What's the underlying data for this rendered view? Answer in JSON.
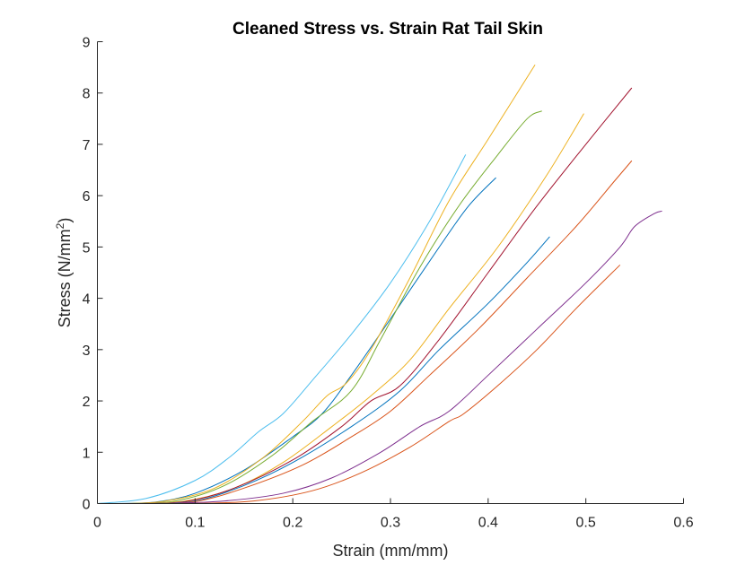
{
  "chart_data": {
    "type": "line",
    "title": "Cleaned Stress vs. Strain Rat Tail Skin",
    "xlabel": "Strain (mm/mm)",
    "ylabel_main": "Stress (N/mm",
    "ylabel_sup": "2",
    "ylabel_end": ")",
    "xlim": [
      0,
      0.6
    ],
    "ylim": [
      0,
      9
    ],
    "xticks": [
      0,
      0.1,
      0.2,
      0.3,
      0.4,
      0.5,
      0.6
    ],
    "xtick_labels": [
      "0",
      "0.1",
      "0.2",
      "0.3",
      "0.4",
      "0.5",
      "0.6"
    ],
    "yticks": [
      0,
      1,
      2,
      3,
      4,
      5,
      6,
      7,
      8,
      9
    ],
    "ytick_labels": [
      "0",
      "1",
      "2",
      "3",
      "4",
      "5",
      "6",
      "7",
      "8",
      "9"
    ],
    "grid": false,
    "legend": "none",
    "series": [
      {
        "color": "#4DBEEE",
        "points": [
          [
            0,
            0
          ],
          [
            0.05,
            0.1
          ],
          [
            0.1,
            0.45
          ],
          [
            0.135,
            0.9
          ],
          [
            0.165,
            1.4
          ],
          [
            0.19,
            1.75
          ],
          [
            0.22,
            2.4
          ],
          [
            0.26,
            3.3
          ],
          [
            0.3,
            4.3
          ],
          [
            0.34,
            5.5
          ],
          [
            0.377,
            6.8
          ]
        ]
      },
      {
        "color": "#0072BD",
        "points": [
          [
            0.02,
            0
          ],
          [
            0.06,
            0.03
          ],
          [
            0.1,
            0.2
          ],
          [
            0.15,
            0.65
          ],
          [
            0.2,
            1.3
          ],
          [
            0.23,
            1.75
          ],
          [
            0.26,
            2.5
          ],
          [
            0.3,
            3.6
          ],
          [
            0.35,
            5.0
          ],
          [
            0.38,
            5.8
          ],
          [
            0.408,
            6.35
          ]
        ]
      },
      {
        "color": "#EDB120",
        "points": [
          [
            0.03,
            0
          ],
          [
            0.07,
            0.05
          ],
          [
            0.12,
            0.3
          ],
          [
            0.17,
            0.9
          ],
          [
            0.21,
            1.6
          ],
          [
            0.235,
            2.1
          ],
          [
            0.255,
            2.35
          ],
          [
            0.28,
            3.0
          ],
          [
            0.32,
            4.4
          ],
          [
            0.36,
            5.9
          ],
          [
            0.4,
            7.1
          ],
          [
            0.448,
            8.55
          ]
        ]
      },
      {
        "color": "#77AC30",
        "points": [
          [
            0.03,
            0
          ],
          [
            0.08,
            0.05
          ],
          [
            0.13,
            0.35
          ],
          [
            0.18,
            0.95
          ],
          [
            0.22,
            1.6
          ],
          [
            0.26,
            2.2
          ],
          [
            0.29,
            3.2
          ],
          [
            0.33,
            4.6
          ],
          [
            0.37,
            5.8
          ],
          [
            0.41,
            6.8
          ],
          [
            0.44,
            7.5
          ],
          [
            0.455,
            7.65
          ]
        ]
      },
      {
        "color": "#EDB120",
        "points": [
          [
            0.04,
            0
          ],
          [
            0.09,
            0.05
          ],
          [
            0.14,
            0.3
          ],
          [
            0.19,
            0.8
          ],
          [
            0.24,
            1.5
          ],
          [
            0.28,
            2.1
          ],
          [
            0.32,
            2.8
          ],
          [
            0.36,
            3.8
          ],
          [
            0.41,
            5.0
          ],
          [
            0.46,
            6.4
          ],
          [
            0.498,
            7.6
          ]
        ]
      },
      {
        "color": "#A2142F",
        "points": [
          [
            0.04,
            0
          ],
          [
            0.09,
            0.04
          ],
          [
            0.14,
            0.3
          ],
          [
            0.2,
            0.85
          ],
          [
            0.25,
            1.5
          ],
          [
            0.28,
            2.0
          ],
          [
            0.31,
            2.3
          ],
          [
            0.35,
            3.2
          ],
          [
            0.4,
            4.5
          ],
          [
            0.45,
            5.8
          ],
          [
            0.5,
            7.0
          ],
          [
            0.547,
            8.1
          ]
        ]
      },
      {
        "color": "#0072BD",
        "points": [
          [
            0.05,
            0
          ],
          [
            0.1,
            0.05
          ],
          [
            0.15,
            0.35
          ],
          [
            0.2,
            0.8
          ],
          [
            0.26,
            1.5
          ],
          [
            0.31,
            2.2
          ],
          [
            0.35,
            3.0
          ],
          [
            0.4,
            3.9
          ],
          [
            0.44,
            4.7
          ],
          [
            0.463,
            5.2
          ]
        ]
      },
      {
        "color": "#D95319",
        "points": [
          [
            0.05,
            0
          ],
          [
            0.1,
            0.04
          ],
          [
            0.15,
            0.3
          ],
          [
            0.21,
            0.75
          ],
          [
            0.26,
            1.3
          ],
          [
            0.3,
            1.8
          ],
          [
            0.34,
            2.5
          ],
          [
            0.39,
            3.4
          ],
          [
            0.44,
            4.4
          ],
          [
            0.49,
            5.4
          ],
          [
            0.53,
            6.3
          ],
          [
            0.547,
            6.68
          ]
        ]
      },
      {
        "color": "#7E2F8E",
        "points": [
          [
            0.07,
            0
          ],
          [
            0.13,
            0.05
          ],
          [
            0.19,
            0.2
          ],
          [
            0.24,
            0.5
          ],
          [
            0.29,
            1.0
          ],
          [
            0.33,
            1.5
          ],
          [
            0.36,
            1.8
          ],
          [
            0.4,
            2.5
          ],
          [
            0.45,
            3.4
          ],
          [
            0.5,
            4.3
          ],
          [
            0.535,
            5.0
          ],
          [
            0.55,
            5.4
          ],
          [
            0.57,
            5.65
          ],
          [
            0.578,
            5.7
          ]
        ]
      },
      {
        "color": "#D95319",
        "points": [
          [
            0.1,
            0
          ],
          [
            0.16,
            0.05
          ],
          [
            0.22,
            0.25
          ],
          [
            0.27,
            0.6
          ],
          [
            0.32,
            1.1
          ],
          [
            0.36,
            1.6
          ],
          [
            0.375,
            1.75
          ],
          [
            0.41,
            2.3
          ],
          [
            0.45,
            3.0
          ],
          [
            0.49,
            3.8
          ],
          [
            0.535,
            4.65
          ]
        ]
      }
    ]
  }
}
